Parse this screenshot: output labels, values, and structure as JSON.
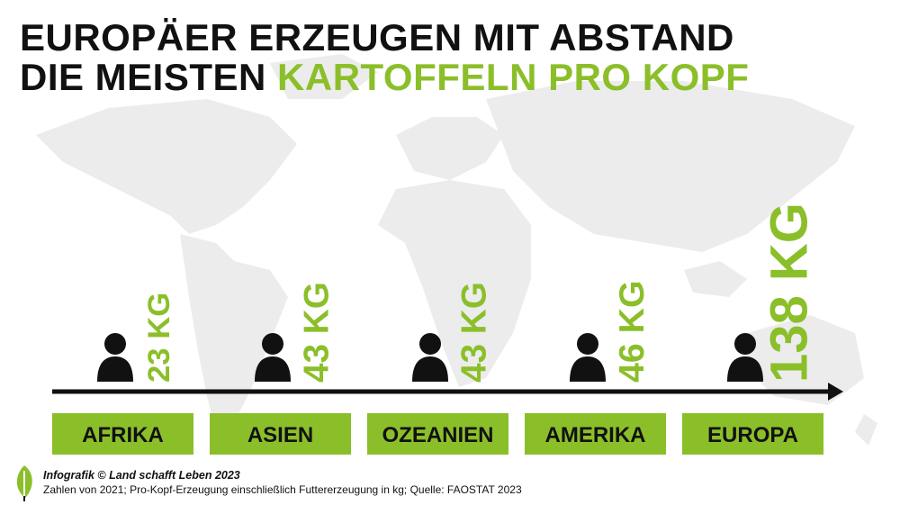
{
  "title": {
    "line1": "EUROPÄER ERZEUGEN MIT ABSTAND",
    "line2_prefix": "DIE MEISTEN",
    "line2_highlight": "KARTOFFELN PRO KOPF"
  },
  "colors": {
    "accent": "#8bbf2a",
    "text": "#111111",
    "map": "#ececec"
  },
  "icons": {
    "person": "person-icon",
    "arrow": "arrow-right-icon",
    "logo": "leaf-logo-icon",
    "background": "world-map"
  },
  "chart_data": {
    "type": "bar",
    "unit": "KG",
    "categories": [
      "AFRIKA",
      "ASIEN",
      "OZEANIEN",
      "AMERIKA",
      "EUROPA"
    ],
    "values": [
      23,
      43,
      43,
      46,
      138
    ],
    "value_labels": [
      "23 KG",
      "43 KG",
      "43 KG",
      "46 KG",
      "138 KG"
    ]
  },
  "footer": {
    "credit": "Infografik © Land schafft Leben 2023",
    "source": "Zahlen von 2021; Pro-Kopf-Erzeugung einschließlich Futtererzeugung in kg; Quelle: FAOSTAT 2023"
  }
}
